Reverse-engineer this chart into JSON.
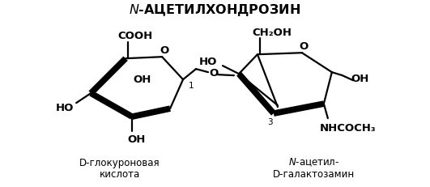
{
  "bg": "#ffffff",
  "lc": "#000000",
  "lw": 1.6,
  "lw_thick": 5.5,
  "lw_med": 2.5,
  "title": "$\\it{N}$-АЦЕТИЛХОНДРОЗИН",
  "label_left_l1": "D-глокуроновая",
  "label_left_l2": "кислота",
  "label_right_l1": "$\\it{N}$-ацетил-",
  "label_right_l2": "D-галактозамин",
  "fs_main": 9.5,
  "fs_label": 8.5,
  "fs_num": 7.5,
  "fs_title": 11.5
}
